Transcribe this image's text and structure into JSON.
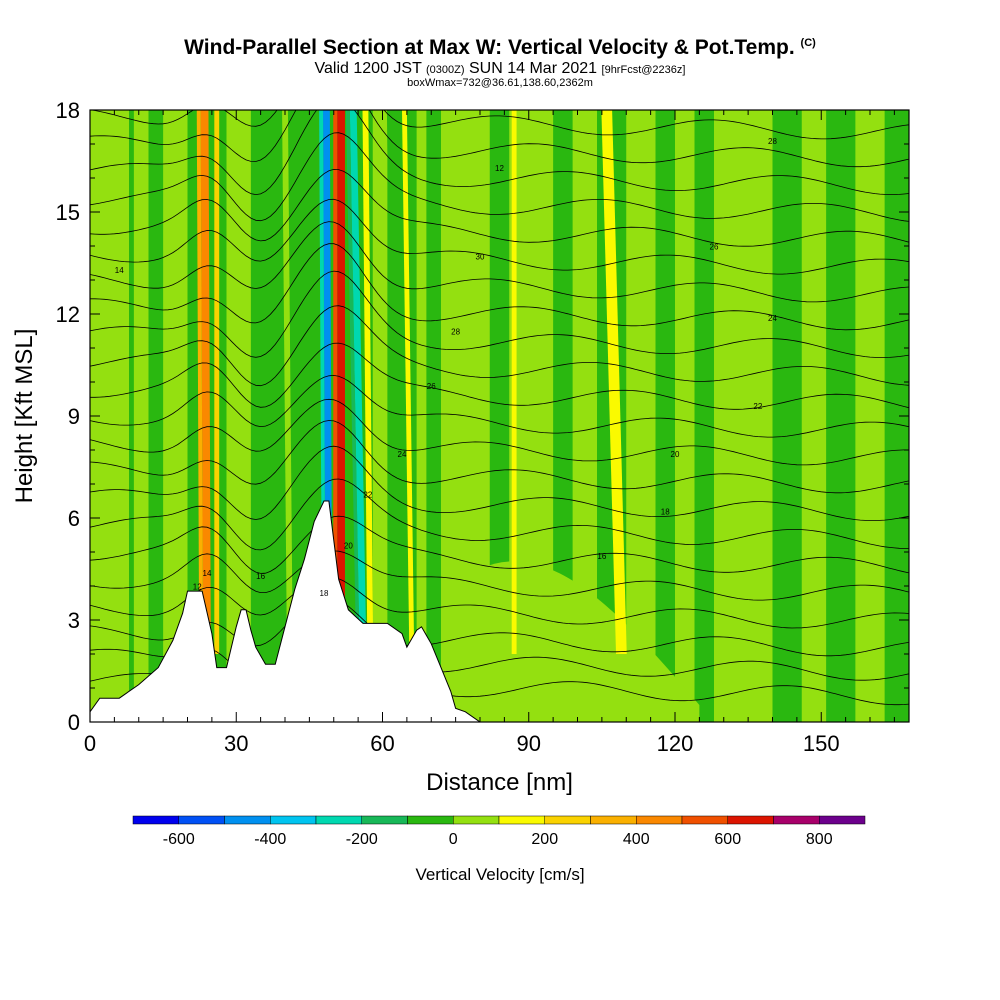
{
  "title": {
    "main": "Wind-Parallel Section at Max W: Vertical Velocity & Pot.Temp.",
    "copyright": "(C)",
    "valid_prefix": "Valid 1200 JST",
    "valid_utc": "(0300Z)",
    "valid_date": "SUN 14 Mar 2021",
    "forecast": "[9hrFcst@2236z]",
    "boxwmax": "boxWmax=732@36.61,138.60,2362m"
  },
  "chart_data": {
    "type": "heatmap",
    "xlabel": "Distance [nm]",
    "ylabel": "Height [Kft MSL]",
    "xlim": [
      0,
      168
    ],
    "ylim": [
      0,
      18
    ],
    "xticks": [
      0,
      30,
      60,
      90,
      120,
      150
    ],
    "yticks": [
      0,
      3,
      6,
      9,
      12,
      15,
      18
    ],
    "colorbar": {
      "label": "Vertical Velocity [cm/s]",
      "tick_values": [
        -600,
        -400,
        -200,
        0,
        200,
        400,
        600,
        800
      ],
      "tick_labels": [
        "-600",
        "-400",
        "-200",
        "0",
        "200",
        "400",
        "600",
        "800"
      ],
      "bins": [
        {
          "from": -700,
          "to": -600,
          "color": "#0000ee"
        },
        {
          "from": -600,
          "to": -500,
          "color": "#0050f5"
        },
        {
          "from": -500,
          "to": -400,
          "color": "#0090f0"
        },
        {
          "from": -400,
          "to": -300,
          "color": "#00c4f0"
        },
        {
          "from": -300,
          "to": -200,
          "color": "#00d8b0"
        },
        {
          "from": -200,
          "to": -100,
          "color": "#18b858"
        },
        {
          "from": -100,
          "to": 0,
          "color": "#2ab810"
        },
        {
          "from": 0,
          "to": 100,
          "color": "#94e010"
        },
        {
          "from": 100,
          "to": 200,
          "color": "#fafa00"
        },
        {
          "from": 200,
          "to": 300,
          "color": "#fad200"
        },
        {
          "from": 300,
          "to": 400,
          "color": "#fab000"
        },
        {
          "from": 400,
          "to": 500,
          "color": "#fa8800"
        },
        {
          "from": 500,
          "to": 600,
          "color": "#f05000"
        },
        {
          "from": 600,
          "to": 700,
          "color": "#dc1400"
        },
        {
          "from": 700,
          "to": 800,
          "color": "#a8006a"
        },
        {
          "from": 800,
          "to": 900,
          "color": "#6c008c"
        }
      ]
    },
    "terrain_kft": [
      [
        0,
        0.3
      ],
      [
        2,
        0.7
      ],
      [
        6,
        0.7
      ],
      [
        10,
        1.1
      ],
      [
        14,
        1.6
      ],
      [
        17,
        2.4
      ],
      [
        19,
        3.2
      ],
      [
        20,
        3.85
      ],
      [
        23,
        3.85
      ],
      [
        25,
        2.6
      ],
      [
        26,
        1.6
      ],
      [
        28,
        1.6
      ],
      [
        30,
        2.8
      ],
      [
        31,
        3.3
      ],
      [
        32,
        3.3
      ],
      [
        33,
        2.7
      ],
      [
        34,
        2.2
      ],
      [
        36,
        1.7
      ],
      [
        38,
        1.7
      ],
      [
        40,
        2.8
      ],
      [
        42,
        3.9
      ],
      [
        44,
        4.8
      ],
      [
        46,
        5.9
      ],
      [
        48,
        6.5
      ],
      [
        49,
        6.5
      ],
      [
        51,
        4.2
      ],
      [
        53,
        3.3
      ],
      [
        56,
        2.9
      ],
      [
        61,
        2.9
      ],
      [
        64,
        2.6
      ],
      [
        65,
        2.2
      ],
      [
        67,
        2.7
      ],
      [
        68,
        2.8
      ],
      [
        70,
        2.3
      ],
      [
        72,
        1.6
      ],
      [
        74,
        0.9
      ],
      [
        75,
        0.4
      ],
      [
        77,
        0.3
      ],
      [
        80,
        0
      ]
    ],
    "strong_bands_cm_s": [
      {
        "x_top": 23.5,
        "x_bottom": 24,
        "width": 1.6,
        "w": 450
      },
      {
        "x_top": 26,
        "x_bottom": 26,
        "width": 1.0,
        "w": 200
      },
      {
        "x_top": 51.5,
        "x_bottom": 51.5,
        "width": 1.6,
        "w": 650
      },
      {
        "x_top": 48.5,
        "x_bottom": 49,
        "width": 1.4,
        "w": -450
      },
      {
        "x_top": 54,
        "x_bottom": 56,
        "width": 1.4,
        "w": -300
      },
      {
        "x_top": 46,
        "x_bottom": 47,
        "width": 1.4,
        "w": -100
      },
      {
        "x_top": 43.5,
        "x_bottom": 45,
        "width": 1.2,
        "w": -100
      },
      {
        "x_top": 40,
        "x_bottom": 41,
        "width": 1.2,
        "w": 50
      },
      {
        "x_top": 56.5,
        "x_bottom": 57.5,
        "width": 1.2,
        "w": 150
      },
      {
        "x_top": 59,
        "x_bottom": 60,
        "width": 1.0,
        "w": 50
      },
      {
        "x_top": 61.5,
        "x_bottom": 63,
        "width": 1.2,
        "w": -100
      },
      {
        "x_top": 64.5,
        "x_bottom": 66,
        "width": 1.0,
        "w": 150
      },
      {
        "x_top": 106,
        "x_bottom": 109,
        "width": 2.2,
        "w": 150
      },
      {
        "x_top": 87,
        "x_bottom": 87,
        "width": 1.0,
        "w": 150
      }
    ],
    "theta_contours": {
      "units": "Celsius",
      "interval": 2,
      "labels": [
        "12",
        "14",
        "16",
        "18",
        "20",
        "22",
        "24",
        "26",
        "28",
        "30"
      ]
    }
  }
}
